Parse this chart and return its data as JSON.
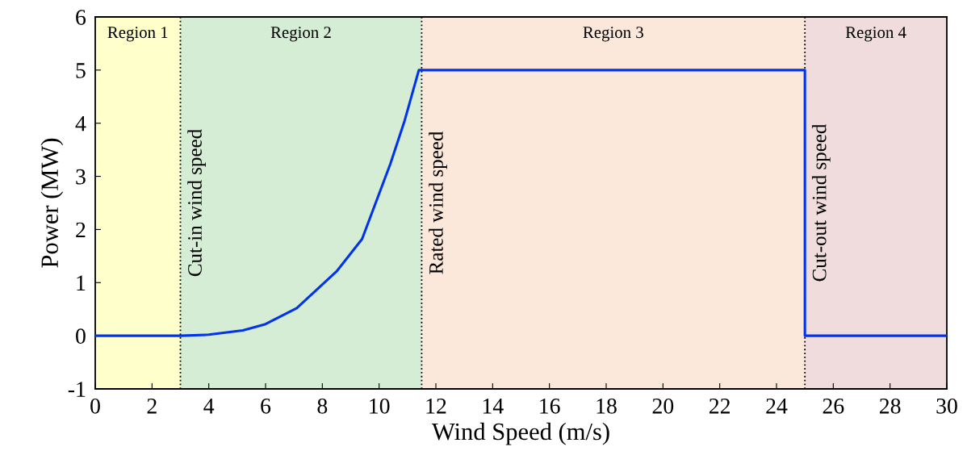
{
  "chart_data": {
    "type": "line",
    "xlabel": "Wind Speed (m/s)",
    "ylabel": "Power (MW)",
    "xlim": [
      0,
      30
    ],
    "xticks": [
      0,
      2,
      4,
      6,
      8,
      10,
      12,
      14,
      16,
      18,
      20,
      22,
      24,
      26,
      28,
      30
    ],
    "ylim": [
      -1,
      6
    ],
    "yticks": [
      -1,
      0,
      1,
      2,
      3,
      4,
      5,
      6
    ],
    "grid": false,
    "marker": "none",
    "line_style": "solid",
    "series": [
      {
        "color": "#0033ee",
        "x": [
          0,
          3,
          4,
          5.2,
          6,
          7.1,
          8.5,
          9.4,
          10.4,
          10.9,
          11.4,
          25,
          25,
          30
        ],
        "values": [
          0,
          0,
          0.02,
          0.1,
          0.22,
          0.52,
          1.21,
          1.82,
          3.24,
          4.05,
          5,
          5,
          0,
          0
        ]
      }
    ],
    "bands": [
      {
        "axis": "x",
        "from": 0,
        "to": 3,
        "label": "Region 1",
        "color": "#ffffcc"
      },
      {
        "axis": "x",
        "from": 3,
        "to": 11.5,
        "label": "Region 2",
        "color": "#d5ecd5"
      },
      {
        "axis": "x",
        "from": 11.5,
        "to": 25,
        "label": "Region 3",
        "color": "#fce8da"
      },
      {
        "axis": "x",
        "from": 25,
        "to": 30,
        "label": "Region 4",
        "color": "#f0dcdc"
      }
    ],
    "ref_lines": [
      {
        "axis": "x",
        "value": 3,
        "label": "Cut-in wind speed",
        "line_style": "dotted",
        "color": "#000000"
      },
      {
        "axis": "x",
        "value": 11.5,
        "label": "Rated wind speed",
        "line_style": "dotted",
        "color": "#000000"
      },
      {
        "axis": "x",
        "value": 25,
        "label": "Cut-out wind speed",
        "line_style": "dotted",
        "color": "#000000"
      }
    ]
  }
}
